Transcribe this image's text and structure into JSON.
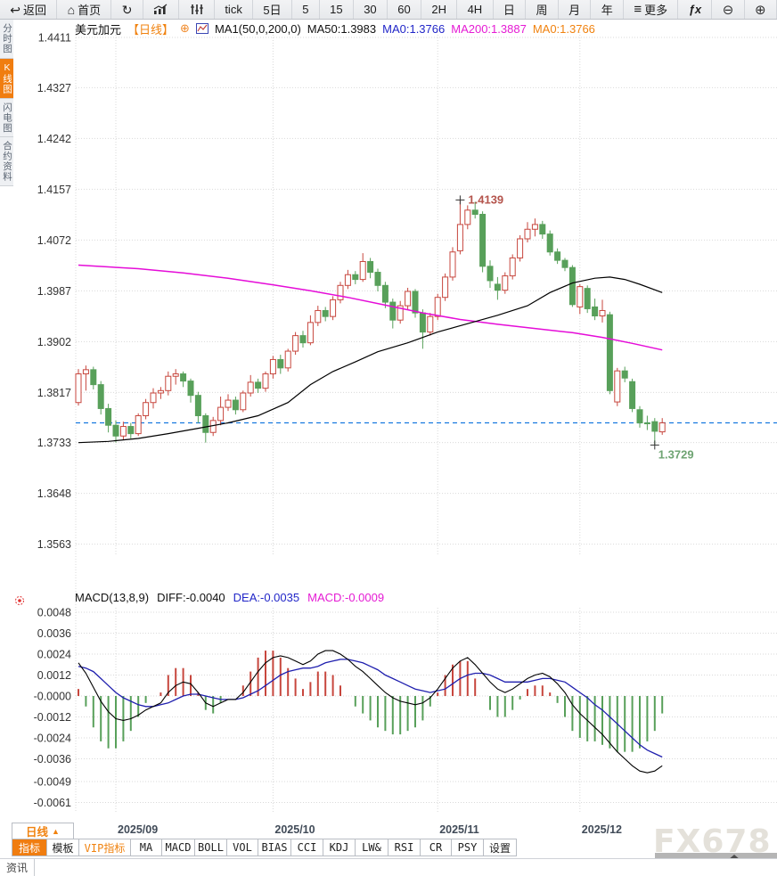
{
  "toolbar": {
    "items": [
      {
        "name": "back-button",
        "icon": "back-arrow-icon",
        "glyph": "↩",
        "label": "返回"
      },
      {
        "name": "home-button",
        "icon": "home-icon",
        "glyph": "⌂",
        "label": "首页"
      },
      {
        "name": "refresh-button",
        "icon": "refresh-icon",
        "glyph": "↻",
        "label": ""
      },
      {
        "name": "trend-chart-button",
        "icon": "bar-chart-icon",
        "svg": true,
        "label": ""
      },
      {
        "name": "candle-chart-button",
        "icon": "candle-sliders-icon",
        "svg": true,
        "label": ""
      },
      {
        "name": "interval-tick-button",
        "label": "tick"
      },
      {
        "name": "interval-5d-button",
        "label": "5日"
      },
      {
        "name": "interval-5m-button",
        "label": "5"
      },
      {
        "name": "interval-15m-button",
        "label": "15"
      },
      {
        "name": "interval-30m-button",
        "label": "30"
      },
      {
        "name": "interval-60m-button",
        "label": "60"
      },
      {
        "name": "interval-2h-button",
        "label": "2H"
      },
      {
        "name": "interval-4h-button",
        "label": "4H"
      },
      {
        "name": "interval-day-button",
        "label": "日"
      },
      {
        "name": "interval-week-button",
        "label": "周"
      },
      {
        "name": "interval-month-button",
        "label": "月"
      },
      {
        "name": "interval-year-button",
        "label": "年"
      },
      {
        "name": "more-button",
        "icon": "menu-icon",
        "glyph": "≡",
        "label": "更多"
      },
      {
        "name": "formula-button",
        "icon": "fx-icon",
        "glyph": "ƒx",
        "label": ""
      },
      {
        "name": "zoom-out-button",
        "icon": "zoom-out-icon",
        "glyph": "⊖",
        "label": ""
      },
      {
        "name": "zoom-in-button",
        "icon": "zoom-in-icon",
        "glyph": "⊕",
        "label": ""
      }
    ]
  },
  "side_tabs": {
    "items": [
      {
        "name": "tab-time-chart",
        "label": "分时图",
        "active": false
      },
      {
        "name": "tab-kline-chart",
        "label": "K线图",
        "active": true
      },
      {
        "name": "tab-lightning-chart",
        "label": "闪电图",
        "active": false
      },
      {
        "name": "tab-contract-info",
        "label": "合约资料",
        "active": false
      }
    ]
  },
  "price_header": {
    "symbol": "美元加元",
    "period": "【日线】",
    "add_icon": "⊕",
    "ma_settings": "MA1(50,0,200,0)",
    "ma50": "MA50:1.3983",
    "ma0_blue": "MA0:1.3766",
    "ma200": "MA200:1.3887",
    "ma0_orange": "MA0:1.3766"
  },
  "macd_header": {
    "formula": "MACD(13,8,9)",
    "diff": "DIFF:-0.0040",
    "dea": "DEA:-0.0035",
    "macd": "MACD:-0.0009"
  },
  "bottom": {
    "period_button": "日线",
    "period_arrow": "▲",
    "tabs": [
      {
        "name": "tab-indicator",
        "label": "指标",
        "active": true
      },
      {
        "name": "tab-template",
        "label": "模板"
      },
      {
        "name": "tab-vip-indicator",
        "label": "VIP指标",
        "vip": true
      },
      {
        "name": "tab-ma",
        "label": "MA"
      },
      {
        "name": "tab-macd",
        "label": "MACD"
      },
      {
        "name": "tab-boll",
        "label": "BOLL"
      },
      {
        "name": "tab-vol",
        "label": "VOL"
      },
      {
        "name": "tab-bias",
        "label": "BIAS"
      },
      {
        "name": "tab-cci",
        "label": "CCI"
      },
      {
        "name": "tab-kdj",
        "label": "KDJ"
      },
      {
        "name": "tab-lw",
        "label": "LW&"
      },
      {
        "name": "tab-rsi",
        "label": "RSI"
      },
      {
        "name": "tab-cr",
        "label": "CR"
      },
      {
        "name": "tab-psy",
        "label": "PSY"
      },
      {
        "name": "tab-settings",
        "label": "设置"
      }
    ],
    "news_tab": "资讯",
    "watermark": "FX678"
  },
  "chart_data": {
    "type": "candlestick+macd",
    "symbol": "美元加元",
    "period": "日线",
    "price_axis_labels": [
      "1.4411",
      "1.4327",
      "1.4242",
      "1.4157",
      "1.4072",
      "1.3987",
      "1.3902",
      "1.3817",
      "1.3733",
      "1.3648",
      "1.3563"
    ],
    "macd_axis_labels": [
      "0.0048",
      "0.0036",
      "0.0024",
      "0.0012",
      "-0.0000",
      "-0.0012",
      "-0.0024",
      "-0.0036",
      "-0.0049",
      "-0.0061"
    ],
    "x_axis": {
      "labels": [
        "2025/09",
        "2025/10",
        "2025/11",
        "2025/12"
      ],
      "indices": [
        5,
        26,
        48,
        67
      ]
    },
    "current_price": 1.3766,
    "high_annotation": {
      "text": "1.4139",
      "value": 1.4139,
      "index": 51
    },
    "low_annotation": {
      "text": "1.3729",
      "value": 1.3729,
      "index": 77
    },
    "candles": [
      [
        1.38,
        1.3856,
        1.3795,
        1.3848
      ],
      [
        1.3848,
        1.3862,
        1.382,
        1.3855
      ],
      [
        1.3855,
        1.386,
        1.3822,
        1.383
      ],
      [
        1.383,
        1.3836,
        1.378,
        1.379
      ],
      [
        1.379,
        1.3798,
        1.375,
        1.3762
      ],
      [
        1.3762,
        1.377,
        1.3733,
        1.3744
      ],
      [
        1.3744,
        1.3768,
        1.3738,
        1.376
      ],
      [
        1.376,
        1.3766,
        1.374,
        1.3748
      ],
      [
        1.3748,
        1.3782,
        1.3744,
        1.3778
      ],
      [
        1.3778,
        1.3806,
        1.3772,
        1.38
      ],
      [
        1.38,
        1.3824,
        1.379,
        1.3816
      ],
      [
        1.3816,
        1.3826,
        1.3806,
        1.382
      ],
      [
        1.382,
        1.3852,
        1.3812,
        1.3844
      ],
      [
        1.3844,
        1.3856,
        1.383,
        1.3848
      ],
      [
        1.3848,
        1.3852,
        1.3826,
        1.3836
      ],
      [
        1.3836,
        1.384,
        1.38,
        1.3812
      ],
      [
        1.3812,
        1.3818,
        1.3766,
        1.3778
      ],
      [
        1.3778,
        1.3782,
        1.3733,
        1.375
      ],
      [
        1.375,
        1.3776,
        1.3744,
        1.377
      ],
      [
        1.377,
        1.381,
        1.3762,
        1.3792
      ],
      [
        1.3792,
        1.3814,
        1.3786,
        1.3804
      ],
      [
        1.3804,
        1.381,
        1.378,
        1.3788
      ],
      [
        1.3788,
        1.382,
        1.3784,
        1.3816
      ],
      [
        1.3816,
        1.3846,
        1.381,
        1.3834
      ],
      [
        1.3834,
        1.384,
        1.3816,
        1.3824
      ],
      [
        1.3824,
        1.3852,
        1.3818,
        1.3848
      ],
      [
        1.3848,
        1.3878,
        1.384,
        1.3872
      ],
      [
        1.3872,
        1.388,
        1.3848,
        1.3858
      ],
      [
        1.3858,
        1.389,
        1.3852,
        1.3886
      ],
      [
        1.3886,
        1.3918,
        1.388,
        1.3912
      ],
      [
        1.3912,
        1.392,
        1.3892,
        1.39
      ],
      [
        1.39,
        1.3946,
        1.3896,
        1.3934
      ],
      [
        1.3934,
        1.3962,
        1.3928,
        1.3954
      ],
      [
        1.3954,
        1.396,
        1.3936,
        1.3944
      ],
      [
        1.3944,
        1.3978,
        1.3938,
        1.3972
      ],
      [
        1.3972,
        1.4002,
        1.3966,
        1.3996
      ],
      [
        1.3996,
        1.4022,
        1.399,
        1.4014
      ],
      [
        1.4014,
        1.402,
        1.3998,
        1.4006
      ],
      [
        1.4006,
        1.405,
        1.4002,
        1.4036
      ],
      [
        1.4036,
        1.4042,
        1.4008,
        1.4018
      ],
      [
        1.4018,
        1.4024,
        1.3986,
        1.3996
      ],
      [
        1.3996,
        1.4002,
        1.3958,
        1.3968
      ],
      [
        1.3968,
        1.3974,
        1.3924,
        1.3938
      ],
      [
        1.3938,
        1.397,
        1.3932,
        1.3962
      ],
      [
        1.3962,
        1.3992,
        1.3956,
        1.3986
      ],
      [
        1.3986,
        1.399,
        1.3942,
        1.395
      ],
      [
        1.395,
        1.3956,
        1.389,
        1.3918
      ],
      [
        1.3918,
        1.395,
        1.3912,
        1.3944
      ],
      [
        1.3944,
        1.3982,
        1.3938,
        1.3976
      ],
      [
        1.3976,
        1.4016,
        1.397,
        1.401
      ],
      [
        1.401,
        1.406,
        1.4004,
        1.4052
      ],
      [
        1.4054,
        1.4139,
        1.4048,
        1.4098
      ],
      [
        1.4098,
        1.413,
        1.409,
        1.4122
      ],
      [
        1.4122,
        1.4136,
        1.4108,
        1.4115
      ],
      [
        1.4115,
        1.412,
        1.4018,
        1.4028
      ],
      [
        1.4028,
        1.4038,
        1.3992,
        1.4004
      ],
      [
        1.3998,
        1.401,
        1.3972,
        1.3988
      ],
      [
        1.3988,
        1.4018,
        1.3982,
        1.4012
      ],
      [
        1.4012,
        1.4048,
        1.4006,
        1.4042
      ],
      [
        1.4042,
        1.408,
        1.4036,
        1.4074
      ],
      [
        1.4074,
        1.4102,
        1.4068,
        1.409
      ],
      [
        1.409,
        1.4108,
        1.4078,
        1.4098
      ],
      [
        1.4098,
        1.4104,
        1.4074,
        1.4082
      ],
      [
        1.4082,
        1.4088,
        1.4046,
        1.4052
      ],
      [
        1.4052,
        1.4058,
        1.4032,
        1.4038
      ],
      [
        1.4038,
        1.4042,
        1.402,
        1.4026
      ],
      [
        1.4026,
        1.403,
        1.396,
        1.3964
      ],
      [
        1.396,
        1.3998,
        1.3948,
        1.3994
      ],
      [
        1.3991,
        1.3996,
        1.395,
        1.3957
      ],
      [
        1.396,
        1.3974,
        1.3938,
        1.3945
      ],
      [
        1.3945,
        1.3972,
        1.3934,
        1.3954
      ],
      [
        1.3947,
        1.3952,
        1.3814,
        1.382
      ],
      [
        1.3801,
        1.3858,
        1.3794,
        1.3853
      ],
      [
        1.3853,
        1.386,
        1.3834,
        1.3841
      ],
      [
        1.3835,
        1.384,
        1.3784,
        1.379
      ],
      [
        1.3788,
        1.3794,
        1.3758,
        1.3766
      ],
      [
        1.3766,
        1.3778,
        1.3754,
        1.3765
      ],
      [
        1.3768,
        1.3774,
        1.3729,
        1.3752
      ],
      [
        1.3751,
        1.3774,
        1.3746,
        1.3766
      ]
    ],
    "ma50_points": [
      [
        0,
        1.3733
      ],
      [
        4,
        1.3735
      ],
      [
        8,
        1.374
      ],
      [
        12,
        1.3748
      ],
      [
        16,
        1.3757
      ],
      [
        20,
        1.3766
      ],
      [
        24,
        1.3778
      ],
      [
        28,
        1.38
      ],
      [
        31,
        1.383
      ],
      [
        34,
        1.3852
      ],
      [
        37,
        1.3868
      ],
      [
        40,
        1.3885
      ],
      [
        44,
        1.39
      ],
      [
        48,
        1.3918
      ],
      [
        52,
        1.3932
      ],
      [
        56,
        1.3946
      ],
      [
        60,
        1.3962
      ],
      [
        63,
        1.3984
      ],
      [
        66,
        1.4
      ],
      [
        69,
        1.4008
      ],
      [
        71,
        1.401
      ],
      [
        73,
        1.4006
      ],
      [
        75,
        1.3998
      ],
      [
        78,
        1.3984
      ]
    ],
    "ma200_points": [
      [
        0,
        1.403
      ],
      [
        8,
        1.4024
      ],
      [
        14,
        1.4017
      ],
      [
        20,
        1.4008
      ],
      [
        26,
        1.3997
      ],
      [
        31,
        1.3987
      ],
      [
        36,
        1.3976
      ],
      [
        41,
        1.3963
      ],
      [
        46,
        1.395
      ],
      [
        51,
        1.3939
      ],
      [
        56,
        1.3931
      ],
      [
        61,
        1.3924
      ],
      [
        66,
        1.3917
      ],
      [
        70,
        1.3909
      ],
      [
        74,
        1.3899
      ],
      [
        78,
        1.3888
      ]
    ],
    "macd": {
      "diff": [
        0.0019,
        0.0013,
        0.0005,
        -0.0003,
        -0.0009,
        -0.0013,
        -0.0014,
        -0.0013,
        -0.0011,
        -0.0008,
        -0.0006,
        -0.0004,
        0.0002,
        0.0006,
        0.0008,
        0.0007,
        0.0002,
        -0.0004,
        -0.0006,
        -0.0004,
        -0.0002,
        -0.0002,
        0.0002,
        0.0008,
        0.0014,
        0.0019,
        0.0022,
        0.0023,
        0.0022,
        0.002,
        0.0018,
        0.002,
        0.0024,
        0.0026,
        0.0026,
        0.0024,
        0.0021,
        0.0017,
        0.0014,
        0.001,
        0.0006,
        0.0002,
        -0.0001,
        -0.0003,
        -0.0004,
        -0.0005,
        -0.0004,
        -0.0001,
        0.0004,
        0.001,
        0.0016,
        0.002,
        0.0022,
        0.0018,
        0.0013,
        0.0008,
        0.0004,
        0.0002,
        0.0004,
        0.0007,
        0.001,
        0.0012,
        0.0013,
        0.0011,
        0.0007,
        0.0002,
        -0.0005,
        -0.001,
        -0.0014,
        -0.0018,
        -0.0022,
        -0.0027,
        -0.0032,
        -0.0036,
        -0.004,
        -0.0043,
        -0.0044,
        -0.0043,
        -0.004
      ],
      "dea": [
        0.0017,
        0.0016,
        0.0014,
        0.001,
        0.0006,
        0.0002,
        -0.0001,
        -0.0003,
        -0.0005,
        -0.0006,
        -0.0006,
        -0.0005,
        -0.0004,
        -0.0002,
        0.0,
        0.0001,
        0.0001,
        0.0,
        -0.0001,
        -0.0002,
        -0.0002,
        -0.0002,
        -0.0001,
        0.0001,
        0.0003,
        0.0006,
        0.0009,
        0.0012,
        0.0014,
        0.0015,
        0.0016,
        0.0016,
        0.0017,
        0.0019,
        0.002,
        0.0021,
        0.0021,
        0.002,
        0.0019,
        0.0017,
        0.0015,
        0.0012,
        0.001,
        0.0008,
        0.0006,
        0.0004,
        0.0003,
        0.0002,
        0.0003,
        0.0004,
        0.0007,
        0.001,
        0.0012,
        0.0013,
        0.0013,
        0.0012,
        0.001,
        0.0008,
        0.0008,
        0.0008,
        0.0008,
        0.0009,
        0.001,
        0.001,
        0.0009,
        0.0008,
        0.0005,
        0.0002,
        -0.0001,
        -0.0005,
        -0.0008,
        -0.0012,
        -0.0016,
        -0.002,
        -0.0024,
        -0.0028,
        -0.0031,
        -0.0033,
        -0.0035
      ]
    },
    "colors": {
      "up": "#c7463d",
      "down": "#58a05a",
      "ma50": "#000000",
      "ma200": "#e50cd8",
      "dea": "#1f1fae",
      "diff": "#000000",
      "current_line": "#1779df",
      "high_label": "#b4544c",
      "low_label": "#6fa473",
      "grid": "#d9d9d9",
      "axis_text": "#333333",
      "date_text": "#414b58",
      "marker": "#333333",
      "sun_icon": "#e03030"
    }
  }
}
